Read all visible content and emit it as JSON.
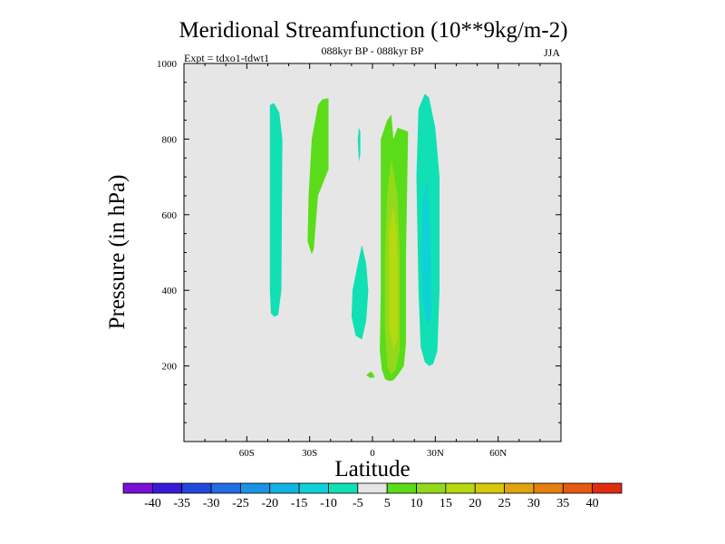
{
  "chart_data": {
    "type": "contour",
    "title": "Meridional Streamfunction (10**9kg/m-2)",
    "subtitle_left": "Expt = tdxo1-tdwt1",
    "subtitle_center": "088kyr BP - 088kyr BP",
    "subtitle_right": "JJA",
    "xlabel": "Latitude",
    "ylabel": "Pressure (in hPa)",
    "xlim": [
      -90,
      90
    ],
    "ylim": [
      1000,
      0
    ],
    "x_ticks": [
      {
        "value": -60,
        "label": "60S"
      },
      {
        "value": -30,
        "label": "30S"
      },
      {
        "value": 0,
        "label": "0"
      },
      {
        "value": 30,
        "label": "30N"
      },
      {
        "value": 60,
        "label": "60N"
      }
    ],
    "y_ticks": [
      {
        "value": 200,
        "label": "200"
      },
      {
        "value": 400,
        "label": "400"
      },
      {
        "value": 600,
        "label": "600"
      },
      {
        "value": 800,
        "label": "800"
      },
      {
        "value": 1000,
        "label": "1000"
      }
    ],
    "background_color": "#e6e6e6",
    "colorbar": {
      "labels": [
        "-40",
        "-35",
        "-30",
        "-25",
        "-20",
        "-15",
        "-10",
        "-5",
        "5",
        "10",
        "15",
        "20",
        "25",
        "30",
        "35",
        "40"
      ],
      "colors": [
        "#7a10d6",
        "#3a1ad6",
        "#2248dd",
        "#1f6ee3",
        "#1a93e6",
        "#13b4e3",
        "#0fd1d8",
        "#10e0b4",
        "#e6e6e6",
        "#5bdc1a",
        "#93d91a",
        "#b7d90f",
        "#d8c80a",
        "#e0a410",
        "#e57f10",
        "#e65a10",
        "#e02d10"
      ]
    },
    "regions": [
      {
        "name": "neg-cell-50s",
        "level": "-10 to -5",
        "color": "#10e0b4",
        "points": [
          [
            -47,
            330
          ],
          [
            -45,
            335
          ],
          [
            -43.5,
            400
          ],
          [
            -43,
            800
          ],
          [
            -44.5,
            870
          ],
          [
            -47,
            895
          ],
          [
            -49,
            890
          ],
          [
            -49,
            400
          ],
          [
            -48.5,
            340
          ]
        ]
      },
      {
        "name": "pos-cell-30s",
        "level": "5 to 10",
        "color": "#5bdc1a",
        "points": [
          [
            -29,
            495
          ],
          [
            -28,
            510
          ],
          [
            -26,
            650
          ],
          [
            -21,
            720
          ],
          [
            -21,
            908
          ],
          [
            -24,
            905
          ],
          [
            -26,
            890
          ],
          [
            -29,
            800
          ],
          [
            -30.5,
            650
          ],
          [
            -31,
            530
          ]
        ]
      },
      {
        "name": "neg-cell-10s",
        "level": "-10 to -5",
        "color": "#10e0b4",
        "points": [
          [
            -5,
            270
          ],
          [
            -3,
            320
          ],
          [
            -2,
            400
          ],
          [
            -3,
            470
          ],
          [
            -5,
            520
          ],
          [
            -7,
            470
          ],
          [
            -9.5,
            400
          ],
          [
            -10,
            330
          ],
          [
            -8,
            280
          ]
        ]
      },
      {
        "name": "neg-sliver-5s",
        "level": "-10 to -5",
        "color": "#10e0b4",
        "points": [
          [
            -6.5,
            740
          ],
          [
            -5.8,
            760
          ],
          [
            -5.8,
            820
          ],
          [
            -6.5,
            830
          ],
          [
            -7,
            800
          ]
        ]
      },
      {
        "name": "pos-speck-3s",
        "level": "5 to 10",
        "color": "#5bdc1a",
        "points": [
          [
            -1,
            168
          ],
          [
            1,
            170
          ],
          [
            0.3,
            180
          ],
          [
            -1,
            185
          ],
          [
            -3,
            175
          ]
        ]
      },
      {
        "name": "pos-cell-10n-outer",
        "level": "5 to 10",
        "color": "#5bdc1a",
        "points": [
          [
            8,
            160
          ],
          [
            10,
            162
          ],
          [
            12,
            175
          ],
          [
            15,
            200
          ],
          [
            16,
            260
          ],
          [
            16,
            490
          ],
          [
            17,
            820
          ],
          [
            12,
            830
          ],
          [
            10,
            800
          ],
          [
            9,
            865
          ],
          [
            7,
            850
          ],
          [
            4,
            800
          ],
          [
            4,
            400
          ],
          [
            3.5,
            240
          ],
          [
            4.5,
            190
          ],
          [
            6,
            165
          ]
        ]
      },
      {
        "name": "pos-cell-10n-inner",
        "level": "10 to 15",
        "color": "#93d91a",
        "points": [
          [
            9,
            175
          ],
          [
            11,
            190
          ],
          [
            13,
            240
          ],
          [
            13,
            500
          ],
          [
            12,
            650
          ],
          [
            9,
            750
          ],
          [
            7,
            650
          ],
          [
            6,
            500
          ],
          [
            6,
            300
          ],
          [
            7,
            200
          ]
        ]
      },
      {
        "name": "pos-cell-10n-core",
        "level": "15 to 20",
        "color": "#b7d90f",
        "points": [
          [
            10,
            245
          ],
          [
            12,
            270
          ],
          [
            12.3,
            400
          ],
          [
            11.5,
            560
          ],
          [
            10,
            620
          ],
          [
            8,
            560
          ],
          [
            8,
            300
          ]
        ]
      },
      {
        "name": "neg-cell-30n-outer",
        "level": "-10 to -5",
        "color": "#10e0b4",
        "points": [
          [
            27,
            200
          ],
          [
            29,
            205
          ],
          [
            31,
            240
          ],
          [
            32,
            400
          ],
          [
            32,
            700
          ],
          [
            30,
            830
          ],
          [
            27,
            910
          ],
          [
            25,
            920
          ],
          [
            22,
            880
          ],
          [
            21,
            700
          ],
          [
            22,
            400
          ],
          [
            23,
            250
          ],
          [
            25,
            210
          ]
        ]
      },
      {
        "name": "neg-cell-30n-inner",
        "level": "-15 to -10",
        "color": "#0fd1d8",
        "points": [
          [
            26,
            310
          ],
          [
            28,
            330
          ],
          [
            28,
            400
          ],
          [
            27.5,
            560
          ],
          [
            26,
            690
          ],
          [
            24,
            640
          ],
          [
            23.5,
            500
          ],
          [
            24,
            380
          ]
        ]
      }
    ]
  }
}
